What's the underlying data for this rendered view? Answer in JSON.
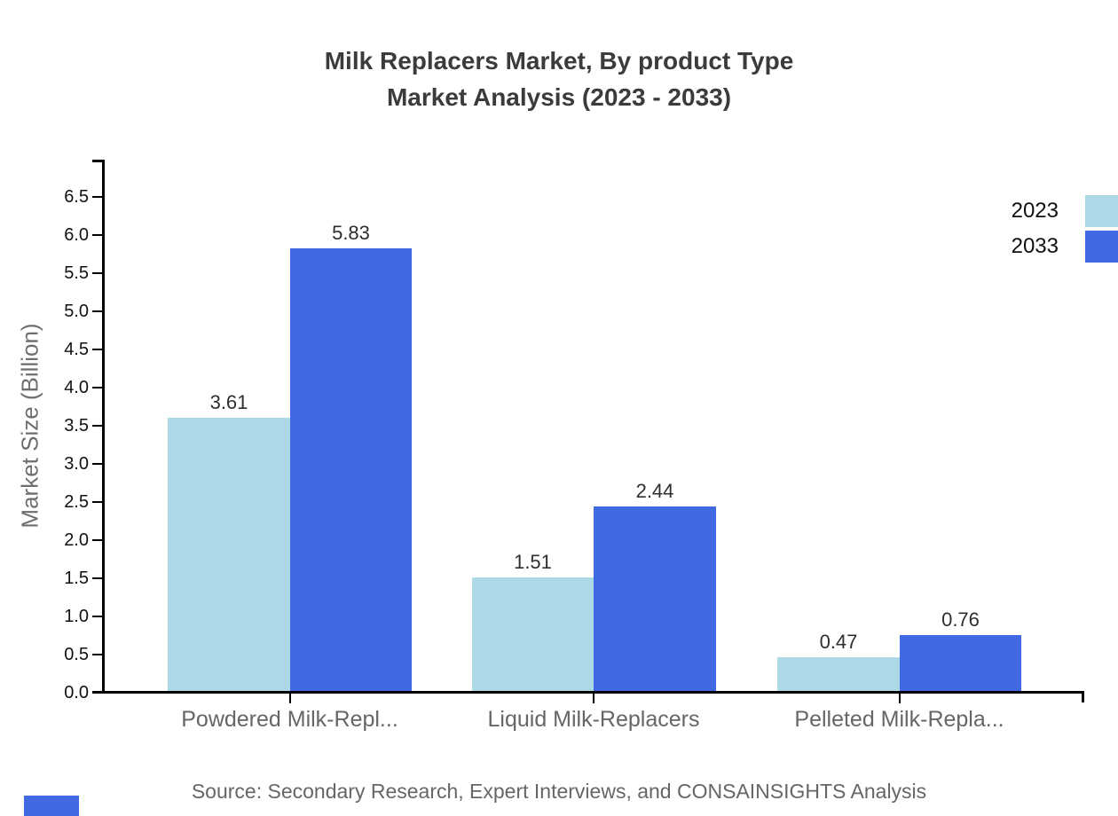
{
  "figure": {
    "title_line1": "Milk Replacers Market, By product Type",
    "title_line2": "Market Analysis (2023 - 2033)",
    "source_note": "Source: Secondary Research, Expert Interviews, and CONSAINSIGHTS Analysis"
  },
  "chart_data": {
    "type": "bar",
    "title": "Milk Replacers Market, By product Type\nMarket Analysis (2023 - 2033)",
    "categories": [
      "Powdered Milk-Repl...",
      "Liquid Milk-Replacers",
      "Pelleted Milk-Repla..."
    ],
    "series": [
      {
        "name": "2023",
        "color": "#ADD8E6",
        "values": [
          3.61,
          1.51,
          0.47
        ]
      },
      {
        "name": "2033",
        "color": "#4169E1",
        "values": [
          5.83,
          2.44,
          0.76
        ]
      }
    ],
    "xlabel": "",
    "ylabel": "Market Size (Billion)",
    "ylim": [
      0,
      7
    ],
    "yticks": [
      0,
      0.5,
      1,
      1.5,
      2,
      2.5,
      3,
      3.5,
      4,
      4.5,
      5,
      5.5,
      6,
      6.5
    ],
    "value_label_format": "0.00",
    "grid": false,
    "legend_position": "top-right"
  },
  "colors": {
    "background": "#ffffff",
    "axis": "#000000",
    "title_text": "#3b3b3b",
    "tick_text": "#111111",
    "category_text": "#666666",
    "value_text": "#2e2e2e",
    "source_text": "#666666",
    "watermark": "#4169E1"
  }
}
